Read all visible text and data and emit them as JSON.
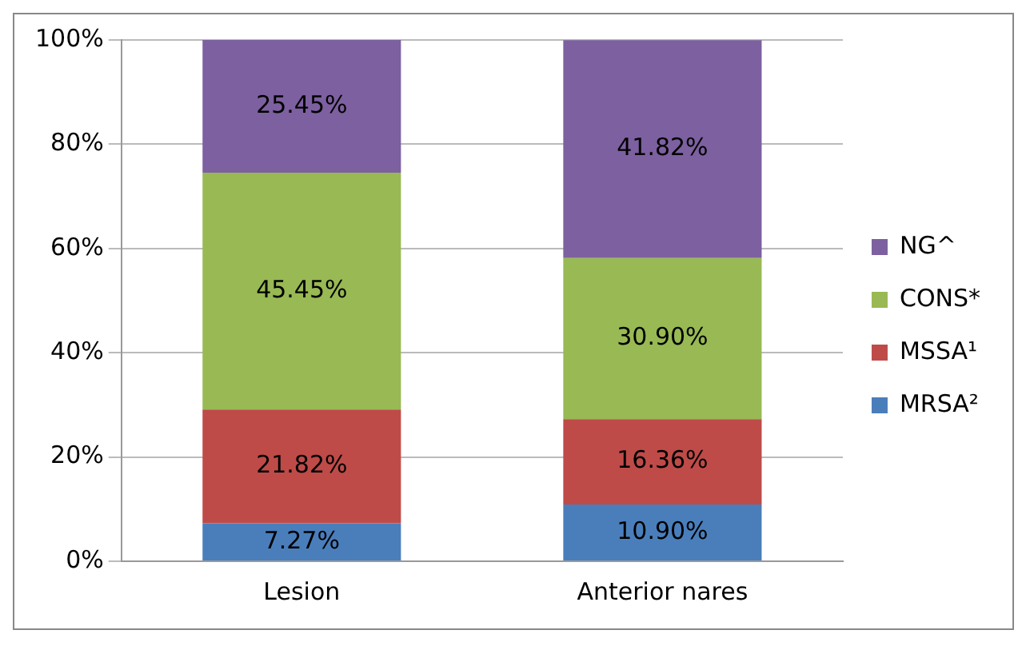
{
  "chart_data": {
    "type": "bar",
    "stacked": true,
    "categories": [
      "Lesion",
      "Anterior nares"
    ],
    "series": [
      {
        "name": "MRSA²",
        "color": "#4a7ebb",
        "values": [
          7.27,
          10.9
        ],
        "value_labels": [
          "7.27%",
          "10.90%"
        ]
      },
      {
        "name": "MSSA¹",
        "color": "#be4b48",
        "values": [
          21.82,
          16.36
        ],
        "value_labels": [
          "21.82%",
          "16.36%"
        ]
      },
      {
        "name": "CONS*",
        "color": "#98b954",
        "values": [
          45.45,
          30.9
        ],
        "value_labels": [
          "45.45%",
          "30.90%"
        ]
      },
      {
        "name": "NG^",
        "color": "#7d60a0",
        "values": [
          25.45,
          41.82
        ],
        "value_labels": [
          "25.45%",
          "41.82%"
        ]
      }
    ],
    "ylim": [
      0,
      100
    ],
    "yticks": [
      {
        "value": 0,
        "label": "0%"
      },
      {
        "value": 20,
        "label": "20%"
      },
      {
        "value": 40,
        "label": "40%"
      },
      {
        "value": 60,
        "label": "60%"
      },
      {
        "value": 80,
        "label": "80%"
      },
      {
        "value": 100,
        "label": "100%"
      }
    ],
    "grid": "y",
    "legend": "right"
  }
}
